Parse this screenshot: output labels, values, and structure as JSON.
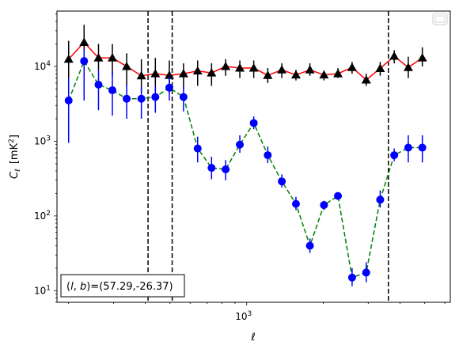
{
  "chart_data": {
    "type": "scatter",
    "xlabel": "ℓ",
    "ylabel_main": "C",
    "ylabel_sub": "ℓ",
    "ylabel_unit_open": "[mK",
    "ylabel_unit_sup": "2",
    "ylabel_unit_close": "]",
    "x_scale": "log",
    "y_scale": "log",
    "xlim": [
      180,
      6300
    ],
    "ylim": [
      7,
      55000
    ],
    "xticks": [
      {
        "value": 1000,
        "base": "10",
        "exp": "3"
      }
    ],
    "yticks": [
      {
        "value": 10,
        "base": "10",
        "exp": "1"
      },
      {
        "value": 100,
        "base": "10",
        "exp": "2"
      },
      {
        "value": 1000,
        "base": "10",
        "exp": "3"
      },
      {
        "value": 10000,
        "base": "10",
        "exp": "4"
      }
    ],
    "legend": "top-right (empty)",
    "annotation": {
      "text_prefix": "(",
      "text_l": "l",
      "text_comma": ", ",
      "text_b": "b",
      "text_suffix": ")=(57.29,-26.37)",
      "placement": "bottom-left"
    },
    "vlines": [
      410,
      510,
      3600
    ],
    "series": [
      {
        "marker": "triangle",
        "color": "#000000",
        "line_color": "#ff0000",
        "line_style": "solid",
        "x": [
          200,
          230,
          262,
          297,
          338,
          386,
          438,
          497,
          565,
          642,
          728,
          827,
          940,
          1066,
          1210,
          1374,
          1561,
          1771,
          2011,
          2282,
          2593,
          2946,
          3343,
          3795,
          4309,
          4893
        ],
        "y": [
          12500,
          21000,
          13000,
          13000,
          10000,
          7500,
          8000,
          7600,
          8000,
          8700,
          8200,
          10000,
          9500,
          9500,
          7600,
          9000,
          7700,
          9000,
          7700,
          8000,
          9700,
          6600,
          9400,
          13700,
          9700,
          13000
        ],
        "ylo": [
          7000,
          12000,
          9000,
          7500,
          5500,
          4500,
          4500,
          4500,
          5000,
          5500,
          5500,
          7500,
          7000,
          7000,
          6000,
          7000,
          6500,
          7500,
          6500,
          7000,
          8000,
          5500,
          7500,
          11000,
          7000,
          10000
        ],
        "yhi": [
          22000,
          36000,
          20000,
          20000,
          15000,
          12500,
          13000,
          12000,
          11000,
          12000,
          11000,
          12500,
          12000,
          12000,
          9500,
          11000,
          9000,
          11000,
          8500,
          9500,
          11500,
          8000,
          11500,
          16500,
          13500,
          18000
        ]
      },
      {
        "marker": "circle",
        "color": "#0000ff",
        "line_color": "#008000",
        "line_style": "dashed",
        "x": [
          200,
          230,
          262,
          297,
          338,
          386,
          438,
          497,
          565,
          642,
          728,
          827,
          940,
          1066,
          1210,
          1374,
          1561,
          1771,
          2011,
          2282,
          2593,
          2946,
          3343,
          3795,
          4309,
          4893
        ],
        "y": [
          3500,
          11800,
          5700,
          4800,
          3700,
          3700,
          3900,
          5200,
          3900,
          800,
          440,
          420,
          900,
          1750,
          650,
          290,
          145,
          40,
          140,
          185,
          15,
          17.5,
          165,
          650,
          820,
          820
        ],
        "ylo": [
          950,
          3500,
          2600,
          2200,
          2000,
          2000,
          2400,
          3500,
          2500,
          520,
          310,
          300,
          700,
          1450,
          510,
          240,
          120,
          32,
          120,
          170,
          11.5,
          13,
          130,
          540,
          520,
          520
        ],
        "yhi": [
          7000,
          17000,
          9200,
          8500,
          5800,
          5400,
          5500,
          7400,
          5400,
          1150,
          620,
          560,
          1200,
          2150,
          850,
          360,
          180,
          50,
          160,
          200,
          20,
          24,
          220,
          800,
          1200,
          1200
        ]
      }
    ]
  }
}
